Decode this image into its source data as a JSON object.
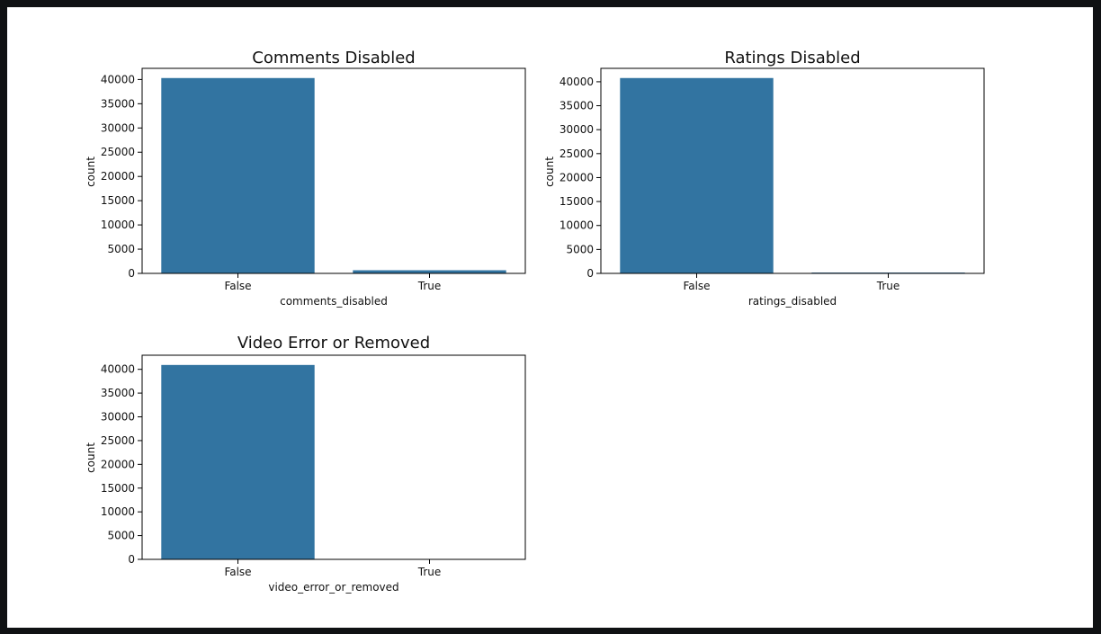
{
  "colors": {
    "bar": "#3274a1",
    "frame": "#000000",
    "page": "#ffffff",
    "background": "#0f1113"
  },
  "chart_data": [
    {
      "type": "bar",
      "title": "Comments Disabled",
      "categories": [
        "False",
        "True"
      ],
      "values": [
        40300,
        650
      ],
      "xlabel": "comments_disabled",
      "ylabel": "count",
      "ylim": [
        0,
        42300
      ],
      "yticks": [
        0,
        5000,
        10000,
        15000,
        20000,
        25000,
        30000,
        35000,
        40000
      ],
      "grid": false
    },
    {
      "type": "bar",
      "title": "Ratings Disabled",
      "categories": [
        "False",
        "True"
      ],
      "values": [
        40780,
        170
      ],
      "xlabel": "ratings_disabled",
      "ylabel": "count",
      "ylim": [
        0,
        42800
      ],
      "yticks": [
        0,
        5000,
        10000,
        15000,
        20000,
        25000,
        30000,
        35000,
        40000
      ],
      "grid": false
    },
    {
      "type": "bar",
      "title": "Video Error or Removed",
      "categories": [
        "False",
        "True"
      ],
      "values": [
        40920,
        25
      ],
      "xlabel": "video_error_or_removed",
      "ylabel": "count",
      "ylim": [
        0,
        42970
      ],
      "yticks": [
        0,
        5000,
        10000,
        15000,
        20000,
        25000,
        30000,
        35000,
        40000
      ],
      "grid": false
    }
  ]
}
